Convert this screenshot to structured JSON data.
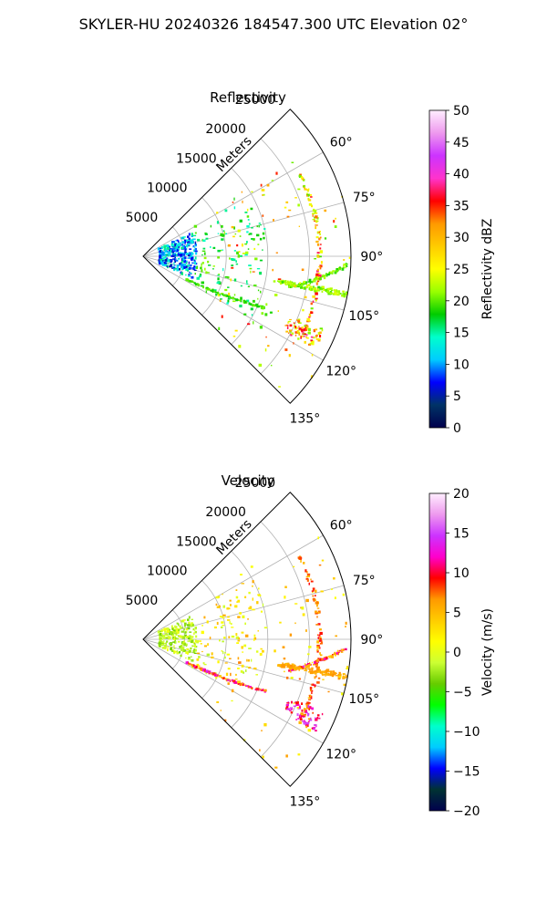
{
  "figure": {
    "suptitle": "SKYLER-HU  20240326  184547.300 UTC Elevation 02°"
  },
  "chart_data": [
    {
      "type": "heatmap",
      "subtype": "polar-sector",
      "title": "Reflectivity",
      "range_label": "Meters",
      "range_ticks": [
        "5000",
        "10000",
        "15000",
        "20000",
        "25000"
      ],
      "range_tick_values": [
        5000,
        10000,
        15000,
        20000,
        25000
      ],
      "range_max": 25000,
      "angle_range_deg": [
        45,
        135
      ],
      "angle_ticks": [
        "60°",
        "75°",
        "90°",
        "105°",
        "120°",
        "135°"
      ],
      "angle_tick_values": [
        60,
        75,
        90,
        105,
        120,
        135
      ],
      "grid": true,
      "colorbar": {
        "label": "Reflectivity dBZ",
        "min": 0,
        "max": 50,
        "ticks": [
          "0",
          "5",
          "10",
          "15",
          "20",
          "25",
          "30",
          "35",
          "40",
          "45",
          "50"
        ],
        "tick_values": [
          0,
          5,
          10,
          15,
          20,
          25,
          30,
          35,
          40,
          45,
          50
        ],
        "stops": [
          "#00004d",
          "#003366",
          "#0000ff",
          "#00ccff",
          "#00ffcc",
          "#00cc00",
          "#99ff00",
          "#ffff00",
          "#ffcc00",
          "#ff9900",
          "#ff0000",
          "#ff33cc",
          "#cc33ff",
          "#ee99ee",
          "#ffeeff"
        ]
      },
      "features": [
        {
          "kind": "cluster",
          "angle": [
            64,
            114
          ],
          "range": [
            2000,
            6500
          ],
          "value": [
            5,
            16
          ],
          "count": 320
        },
        {
          "kind": "cluster",
          "angle": [
            60,
            120
          ],
          "range": [
            6500,
            15000
          ],
          "value": [
            14,
            22
          ],
          "count": 140
        },
        {
          "kind": "streak",
          "angle": [
            113,
            118
          ],
          "range": [
            6000,
            16000
          ],
          "value": [
            18,
            21
          ],
          "count": 90
        },
        {
          "kind": "streak",
          "angle": [
            92.5,
            102
          ],
          "range": [
            18000,
            24500
          ],
          "value": [
            18,
            23
          ],
          "count": 80
        },
        {
          "kind": "band",
          "angle": [
            100.5,
            100.5
          ],
          "range": [
            16500,
            25000
          ],
          "value": [
            19,
            24
          ],
          "count": 120
        },
        {
          "kind": "arc",
          "angle": [
            62,
            118
          ],
          "range": [
            21000,
            21500
          ],
          "value": [
            18,
            38
          ],
          "count": 110
        },
        {
          "kind": "cluster",
          "angle": [
            112,
            118
          ],
          "range": [
            19000,
            23500
          ],
          "value": [
            20,
            40
          ],
          "count": 70
        },
        {
          "kind": "scatter",
          "angle": [
            55,
            135
          ],
          "range": [
            10000,
            25000
          ],
          "value": [
            18,
            36
          ],
          "count": 100
        }
      ]
    },
    {
      "type": "heatmap",
      "subtype": "polar-sector",
      "title": "Velocity",
      "range_label": "Meters",
      "range_ticks": [
        "5000",
        "10000",
        "15000",
        "20000",
        "25000"
      ],
      "range_tick_values": [
        5000,
        10000,
        15000,
        20000,
        25000
      ],
      "range_max": 25000,
      "angle_range_deg": [
        45,
        135
      ],
      "angle_ticks": [
        "60°",
        "75°",
        "90°",
        "105°",
        "120°",
        "135°"
      ],
      "angle_tick_values": [
        60,
        75,
        90,
        105,
        120,
        135
      ],
      "grid": true,
      "colorbar": {
        "label": "Velocity (m/s)",
        "min": -20,
        "max": 20,
        "ticks": [
          "−20",
          "−15",
          "−10",
          "−5",
          "0",
          "5",
          "10",
          "15",
          "20"
        ],
        "tick_values": [
          -20,
          -15,
          -10,
          -5,
          0,
          5,
          10,
          15,
          20
        ],
        "stops": [
          "#00004d",
          "#003333",
          "#0000ff",
          "#00ccff",
          "#00ffcc",
          "#00ff00",
          "#66cc00",
          "#ccff33",
          "#ffff00",
          "#ffcc00",
          "#ff9900",
          "#ff0000",
          "#ff00cc",
          "#cc33ff",
          "#ee99ee",
          "#ffeeff"
        ]
      },
      "features": [
        {
          "kind": "cluster",
          "angle": [
            64,
            114
          ],
          "range": [
            2000,
            6500
          ],
          "value": [
            -4,
            1
          ],
          "count": 220
        },
        {
          "kind": "cluster",
          "angle": [
            60,
            120
          ],
          "range": [
            6500,
            15000
          ],
          "value": [
            -2,
            6
          ],
          "count": 110
        },
        {
          "kind": "streak",
          "angle": [
            113,
            118
          ],
          "range": [
            6000,
            16000
          ],
          "value": [
            4,
            14
          ],
          "count": 110
        },
        {
          "kind": "streak",
          "angle": [
            92.5,
            102
          ],
          "range": [
            18000,
            24500
          ],
          "value": [
            2,
            14
          ],
          "count": 80
        },
        {
          "kind": "band",
          "angle": [
            100.5,
            100.5
          ],
          "range": [
            16500,
            25000
          ],
          "value": [
            5,
            7
          ],
          "count": 120
        },
        {
          "kind": "arc",
          "angle": [
            62,
            118
          ],
          "range": [
            21000,
            21500
          ],
          "value": [
            4,
            10
          ],
          "count": 110
        },
        {
          "kind": "cluster",
          "angle": [
            112,
            118
          ],
          "range": [
            19000,
            23500
          ],
          "value": [
            8,
            16
          ],
          "count": 70
        },
        {
          "kind": "scatter",
          "angle": [
            55,
            135
          ],
          "range": [
            10000,
            25000
          ],
          "value": [
            0,
            8
          ],
          "count": 90
        }
      ]
    }
  ]
}
